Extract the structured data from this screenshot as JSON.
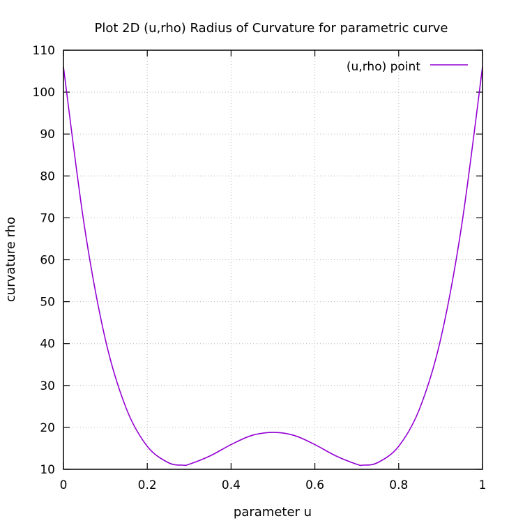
{
  "chart_data": {
    "type": "line",
    "title": "Plot 2D (u,rho) Radius of Curvature for parametric curve",
    "xlabel": "parameter u",
    "ylabel": "curvature rho",
    "xlim": [
      0,
      1
    ],
    "ylim": [
      10,
      110
    ],
    "x_ticks": [
      "0",
      "0.2",
      "0.4",
      "0.6",
      "0.8",
      "1"
    ],
    "y_ticks": [
      "10",
      "20",
      "30",
      "40",
      "50",
      "60",
      "70",
      "80",
      "90",
      "100",
      "110"
    ],
    "grid": true,
    "legend_position": "top-right",
    "series": [
      {
        "name": "(u,rho) point",
        "color": "#9400d3",
        "x": [
          0,
          0.05,
          0.1,
          0.15,
          0.2,
          0.25,
          0.285,
          0.3,
          0.35,
          0.4,
          0.45,
          0.5,
          0.55,
          0.6,
          0.65,
          0.7,
          0.715,
          0.75,
          0.8,
          0.85,
          0.9,
          0.95,
          1
        ],
        "y": [
          106,
          68,
          41,
          24.5,
          15.5,
          11.6,
          11,
          11.2,
          13.2,
          15.9,
          18.1,
          18.8,
          18.1,
          15.9,
          13.2,
          11.2,
          11,
          11.6,
          15.5,
          24.5,
          41,
          68,
          106
        ]
      }
    ]
  }
}
